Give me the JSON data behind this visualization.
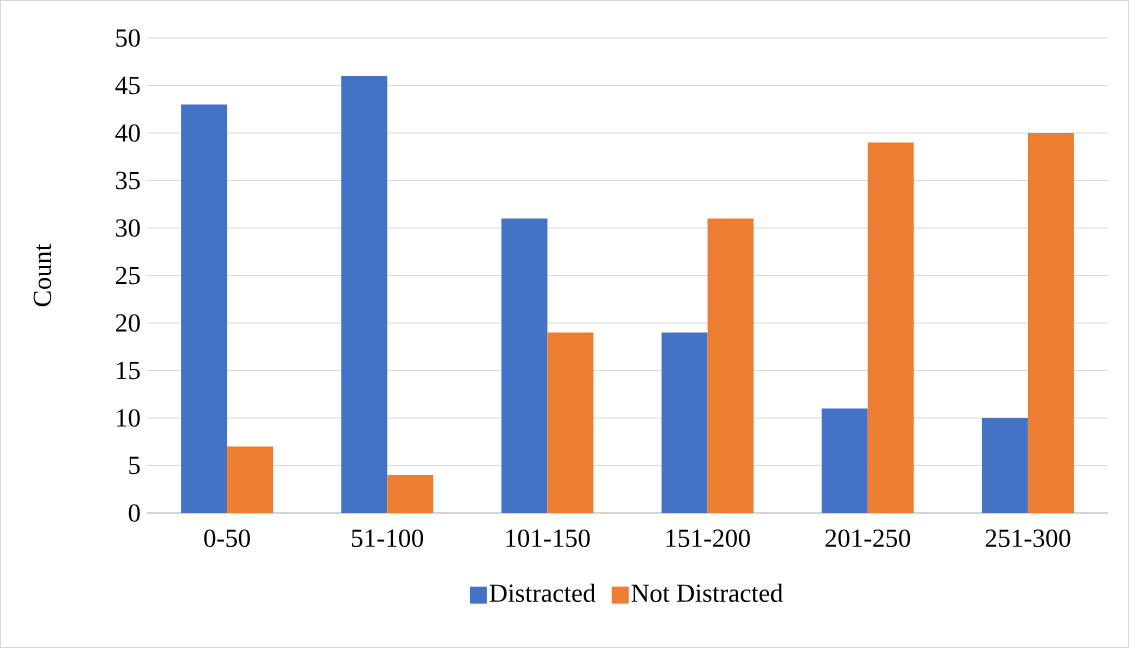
{
  "chart_data": {
    "type": "bar",
    "ylabel": "Count",
    "categories": [
      "0-50",
      "51-100",
      "101-150",
      "151-200",
      "201-250",
      "251-300"
    ],
    "series": [
      {
        "name": "Distracted",
        "color": "#4472c4",
        "values": [
          43,
          46,
          31,
          19,
          11,
          10
        ]
      },
      {
        "name": "Not Distracted",
        "color": "#ed7d31",
        "values": [
          7,
          4,
          19,
          31,
          39,
          40
        ]
      }
    ],
    "ylim": [
      0,
      50
    ],
    "yticks": [
      0,
      5,
      10,
      15,
      20,
      25,
      30,
      35,
      40,
      45,
      50
    ],
    "grid": "y",
    "legend": "bottom"
  }
}
